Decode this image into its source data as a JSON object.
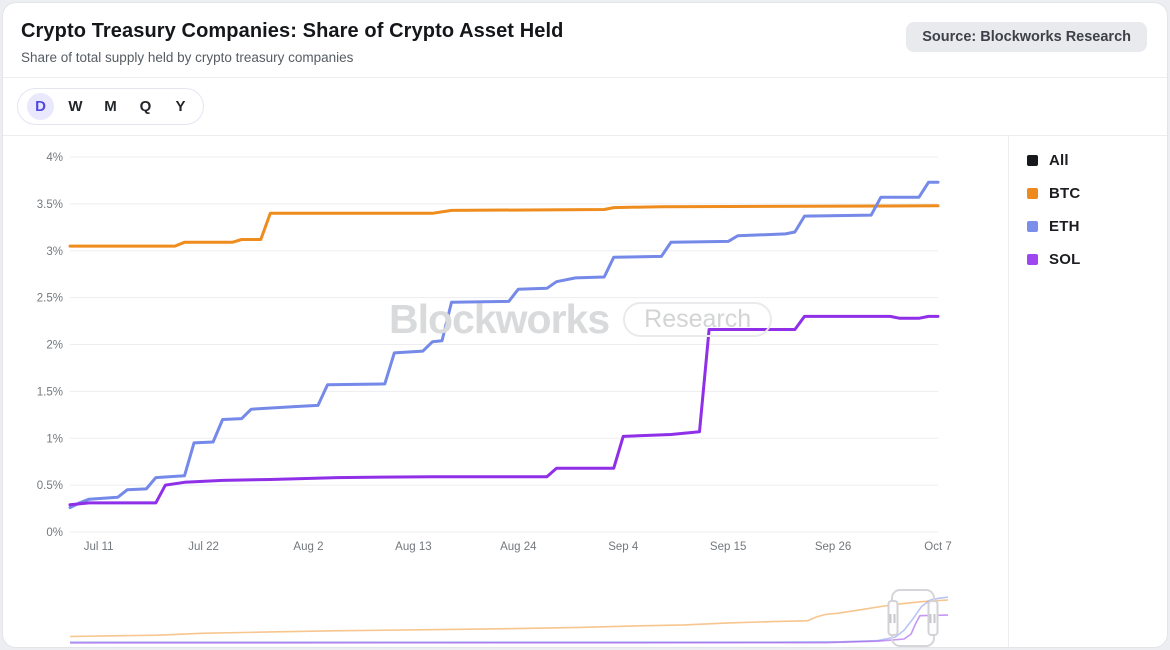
{
  "header": {
    "title": "Crypto Treasury Companies: Share of Crypto Asset Held",
    "subtitle": "Share of total supply held by crypto treasury companies",
    "source_badge": "Source: Blockworks Research"
  },
  "toolbar": {
    "ranges": [
      {
        "label": "D",
        "selected": true
      },
      {
        "label": "W",
        "selected": false
      },
      {
        "label": "M",
        "selected": false
      },
      {
        "label": "Q",
        "selected": false
      },
      {
        "label": "Y",
        "selected": false
      }
    ],
    "selected_accent_bg": "#e9e8fc",
    "selected_accent_text": "#5348e0"
  },
  "watermark": {
    "brand": "Blockworks",
    "sub": "Research"
  },
  "legend": [
    {
      "label": "All",
      "color": "#17181b"
    },
    {
      "label": "BTC",
      "color": "#ee8a1d"
    },
    {
      "label": "ETH",
      "color": "#7b8fea"
    },
    {
      "label": "SOL",
      "color": "#9e47f0"
    }
  ],
  "chart_data": {
    "type": "line",
    "title": "Crypto Treasury Companies: Share of Crypto Asset Held",
    "subtitle": "Share of total supply held by crypto treasury companies",
    "grid": "horizontal",
    "legend_position": "right",
    "ylim": [
      0,
      4
    ],
    "yticks": [
      0,
      0.5,
      1,
      1.5,
      2,
      2.5,
      3,
      3.5,
      4
    ],
    "ytick_format": "percent",
    "x_domain": [
      "Jul 8",
      "Oct 7"
    ],
    "x_domain_days": 91,
    "xticks": [
      {
        "label": "Jul 11",
        "day": 3
      },
      {
        "label": "Jul 22",
        "day": 14
      },
      {
        "label": "Aug 2",
        "day": 25
      },
      {
        "label": "Aug 13",
        "day": 36
      },
      {
        "label": "Aug 24",
        "day": 47
      },
      {
        "label": "Sep 4",
        "day": 58
      },
      {
        "label": "Sep 15",
        "day": 69
      },
      {
        "label": "Sep 26",
        "day": 80
      },
      {
        "label": "Oct 7",
        "day": 91
      }
    ],
    "series": [
      {
        "name": "All",
        "color": "#17181b",
        "points": []
      },
      {
        "name": "BTC",
        "color": "#ef8c1e",
        "points": [
          [
            0,
            3.05
          ],
          [
            11,
            3.05
          ],
          [
            12,
            3.09
          ],
          [
            17,
            3.09
          ],
          [
            18,
            3.12
          ],
          [
            20,
            3.12
          ],
          [
            21,
            3.4
          ],
          [
            38,
            3.4
          ],
          [
            40,
            3.43
          ],
          [
            56,
            3.44
          ],
          [
            57,
            3.46
          ],
          [
            62,
            3.47
          ],
          [
            91,
            3.48
          ]
        ]
      },
      {
        "name": "ETH",
        "color": "#7589e8",
        "points": [
          [
            0,
            0.26
          ],
          [
            1,
            0.31
          ],
          [
            2,
            0.35
          ],
          [
            5,
            0.37
          ],
          [
            6,
            0.45
          ],
          [
            8,
            0.46
          ],
          [
            9,
            0.58
          ],
          [
            12,
            0.6
          ],
          [
            13,
            0.95
          ],
          [
            15,
            0.96
          ],
          [
            16,
            1.2
          ],
          [
            18,
            1.21
          ],
          [
            19,
            1.31
          ],
          [
            24,
            1.34
          ],
          [
            26,
            1.35
          ],
          [
            27,
            1.57
          ],
          [
            33,
            1.58
          ],
          [
            34,
            1.91
          ],
          [
            37,
            1.93
          ],
          [
            38,
            2.03
          ],
          [
            39,
            2.04
          ],
          [
            40,
            2.45
          ],
          [
            46,
            2.46
          ],
          [
            47,
            2.59
          ],
          [
            50,
            2.6
          ],
          [
            51,
            2.67
          ],
          [
            53,
            2.71
          ],
          [
            56,
            2.72
          ],
          [
            57,
            2.93
          ],
          [
            62,
            2.94
          ],
          [
            63,
            3.09
          ],
          [
            69,
            3.1
          ],
          [
            70,
            3.16
          ],
          [
            75,
            3.18
          ],
          [
            76,
            3.2
          ],
          [
            77,
            3.37
          ],
          [
            84,
            3.38
          ],
          [
            85,
            3.57
          ],
          [
            89,
            3.57
          ],
          [
            90,
            3.73
          ],
          [
            91,
            3.73
          ]
        ]
      },
      {
        "name": "SOL",
        "color": "#8f2fe8",
        "points": [
          [
            0,
            0.29
          ],
          [
            2,
            0.31
          ],
          [
            9,
            0.31
          ],
          [
            10,
            0.5
          ],
          [
            12,
            0.53
          ],
          [
            16,
            0.55
          ],
          [
            21,
            0.56
          ],
          [
            28,
            0.58
          ],
          [
            38,
            0.59
          ],
          [
            50,
            0.59
          ],
          [
            51,
            0.68
          ],
          [
            57,
            0.68
          ],
          [
            58,
            1.02
          ],
          [
            63,
            1.04
          ],
          [
            66,
            1.07
          ],
          [
            67,
            2.16
          ],
          [
            76,
            2.16
          ],
          [
            77,
            2.3
          ],
          [
            86,
            2.3
          ],
          [
            87,
            2.28
          ],
          [
            89,
            2.28
          ],
          [
            90,
            2.3
          ],
          [
            91,
            2.3
          ]
        ]
      }
    ],
    "navigator": {
      "ylim": [
        0,
        4.3
      ],
      "brush": {
        "start": 0.935,
        "end": 0.985
      },
      "series": [
        {
          "name": "BTC",
          "color": "#ef8c1e",
          "points": [
            [
              0,
              0.6
            ],
            [
              0.05,
              0.65
            ],
            [
              0.1,
              0.7
            ],
            [
              0.15,
              0.85
            ],
            [
              0.22,
              0.95
            ],
            [
              0.3,
              1.05
            ],
            [
              0.42,
              1.15
            ],
            [
              0.5,
              1.22
            ],
            [
              0.58,
              1.32
            ],
            [
              0.65,
              1.45
            ],
            [
              0.7,
              1.52
            ],
            [
              0.75,
              1.68
            ],
            [
              0.8,
              1.78
            ],
            [
              0.84,
              1.85
            ],
            [
              0.85,
              2.15
            ],
            [
              0.86,
              2.35
            ],
            [
              0.875,
              2.45
            ],
            [
              0.9,
              2.72
            ],
            [
              0.92,
              2.95
            ],
            [
              0.94,
              3.15
            ],
            [
              0.96,
              3.3
            ],
            [
              0.975,
              3.4
            ],
            [
              1,
              3.5
            ]
          ]
        },
        {
          "name": "ETH",
          "color": "#7589e8",
          "points": [
            [
              0,
              0.15
            ],
            [
              0.8,
              0.15
            ],
            [
              0.88,
              0.18
            ],
            [
              0.92,
              0.28
            ],
            [
              0.94,
              0.55
            ],
            [
              0.95,
              1.1
            ],
            [
              0.96,
              2.0
            ],
            [
              0.97,
              3.0
            ],
            [
              0.98,
              3.5
            ],
            [
              0.99,
              3.65
            ],
            [
              1,
              3.73
            ]
          ]
        },
        {
          "name": "SOL",
          "color": "#8f2fe8",
          "points": [
            [
              0,
              0.08
            ],
            [
              0.86,
              0.1
            ],
            [
              0.92,
              0.22
            ],
            [
              0.95,
              0.4
            ],
            [
              0.958,
              0.8
            ],
            [
              0.963,
              1.6
            ],
            [
              0.968,
              2.25
            ],
            [
              0.98,
              2.28
            ],
            [
              1,
              2.3
            ]
          ]
        }
      ]
    }
  }
}
